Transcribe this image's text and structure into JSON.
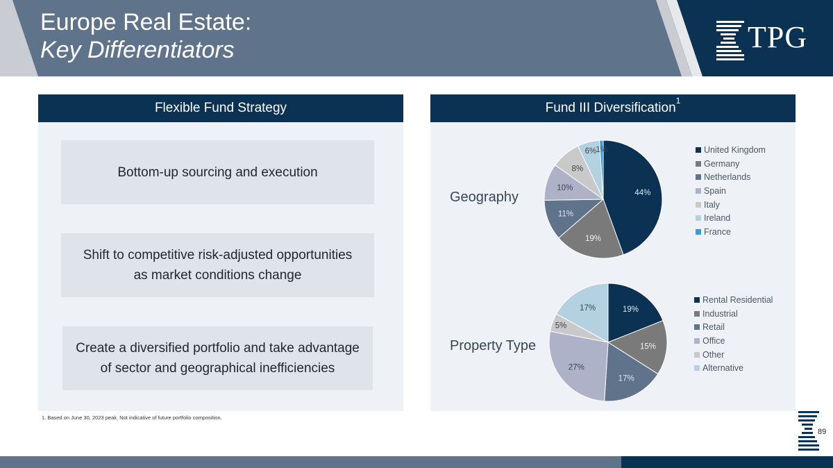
{
  "colors": {
    "navy": "#0b3153",
    "slate": "#5f738b",
    "panel_bg": "#eef2f6",
    "box_bg": "#dfe3ea"
  },
  "header": {
    "title_line1": "Europe Real Estate:",
    "title_line2": "Key Differentiators",
    "logo_text": "TPG",
    "logo_icon": "tpg-stripe-logo-icon"
  },
  "left_panel": {
    "heading": "Flexible Fund Strategy",
    "boxes": [
      {
        "line1": "Bottom-up sourcing and execution"
      },
      {
        "line1": "Shift to competitive risk-adjusted opportunities",
        "line2": "as market conditions change"
      },
      {
        "line1": "Create a diversified portfolio and take advantage",
        "line2": "of sector and geographical inefficiencies"
      }
    ]
  },
  "right_panel": {
    "heading": "Fund III Diversification",
    "heading_sup": "1"
  },
  "chart_data": [
    {
      "type": "pie",
      "title": "Geography",
      "categories": [
        "United Kingdom",
        "Germany",
        "Netherlands",
        "Spain",
        "Italy",
        "Ireland",
        "France"
      ],
      "values": [
        44,
        19,
        11,
        10,
        8,
        6,
        1
      ],
      "data_labels": [
        "44%",
        "19%",
        "11%",
        "10%",
        "8%",
        "6%",
        "1%"
      ],
      "colors": [
        "#0b3153",
        "#7a7a7a",
        "#5f738b",
        "#adb2c9",
        "#c9c9c9",
        "#b3d1e0",
        "#3b9ad8"
      ],
      "legend_position": "right"
    },
    {
      "type": "pie",
      "title": "Property Type",
      "categories": [
        "Rental Residential",
        "Industrial",
        "Retail",
        "Office",
        "Other",
        "Alternative"
      ],
      "values": [
        19,
        15,
        17,
        27,
        5,
        17
      ],
      "data_labels": [
        "19%",
        "15%",
        "17%",
        "27%",
        "5%",
        "17%"
      ],
      "colors": [
        "#0b3153",
        "#7a7a7a",
        "#5f738b",
        "#adb2c9",
        "#c9c9c9",
        "#b3d1e0"
      ],
      "legend_position": "right"
    }
  ],
  "footnote": "1.  Based on June 30, 2023 peak. Not indicative of future portfolio composition.",
  "page_number": "89"
}
